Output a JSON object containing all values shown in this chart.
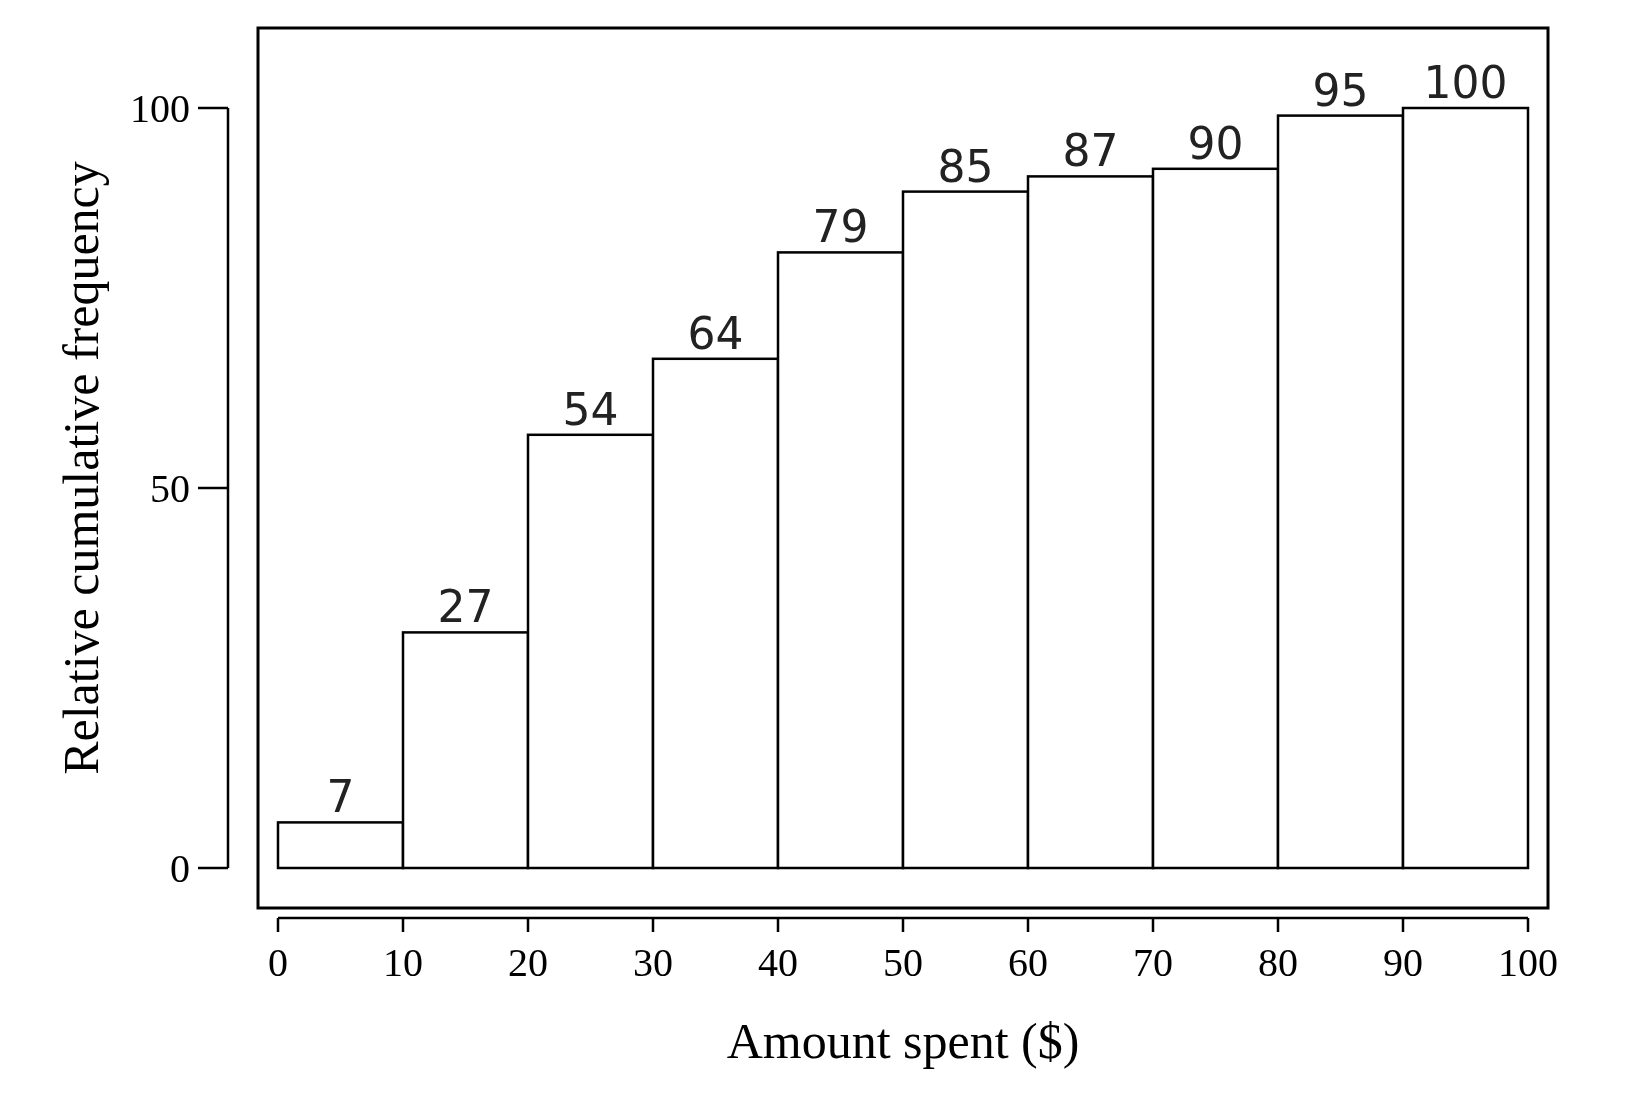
{
  "chart_data": {
    "type": "histogram",
    "xlabel": "Amount spent ($)",
    "ylabel": "Relative cumulative frequency",
    "bins": [
      0,
      10,
      20,
      30,
      40,
      50,
      60,
      70,
      80,
      90,
      100
    ],
    "values": [
      6,
      31,
      57,
      67,
      81,
      89,
      91,
      92,
      99,
      100
    ],
    "annotations": [
      {
        "text": "7",
        "x": 5,
        "y": 6
      },
      {
        "text": "27",
        "x": 15,
        "y": 31
      },
      {
        "text": "54",
        "x": 25,
        "y": 57
      },
      {
        "text": "64",
        "x": 35,
        "y": 67
      },
      {
        "text": "79",
        "x": 45,
        "y": 81
      },
      {
        "text": "85",
        "x": 55,
        "y": 89
      },
      {
        "text": "87",
        "x": 65,
        "y": 91
      },
      {
        "text": "90",
        "x": 75,
        "y": 92
      },
      {
        "text": "95",
        "x": 85,
        "y": 99
      },
      {
        "text": "100",
        "x": 95,
        "y": 100
      }
    ],
    "color": "#ffffff",
    "xlim": [
      0,
      100
    ],
    "xticks": [
      0,
      10,
      20,
      30,
      40,
      50,
      60,
      70,
      80,
      90,
      100
    ],
    "ylim": [
      0,
      100
    ],
    "yticks": [
      0,
      50,
      100
    ],
    "grid": false
  }
}
